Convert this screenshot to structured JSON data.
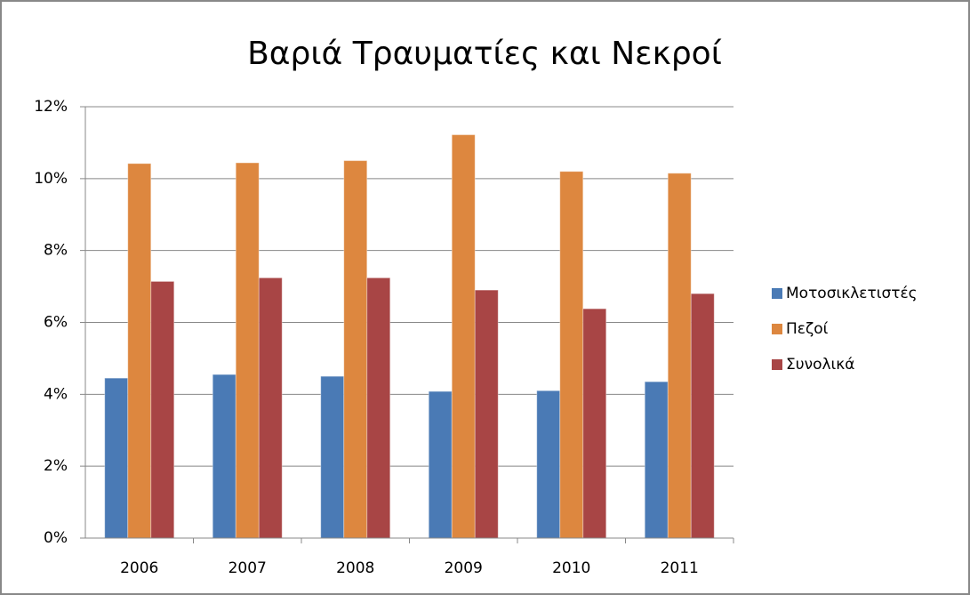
{
  "chart_data": {
    "type": "bar",
    "title": "Βαριά Τραυματίες και Νεκροί",
    "categories": [
      "2006",
      "2007",
      "2008",
      "2009",
      "2010",
      "2011"
    ],
    "series": [
      {
        "name": "Μοτοσικλετιστές",
        "color": "#4a7ab5",
        "values": [
          4.45,
          4.55,
          4.5,
          4.08,
          4.1,
          4.35
        ]
      },
      {
        "name": "Πεζοί",
        "color": "#dd873f",
        "values": [
          10.42,
          10.44,
          10.5,
          11.22,
          10.2,
          10.15
        ]
      },
      {
        "name": "Συνολικά",
        "color": "#a84545",
        "values": [
          7.14,
          7.24,
          7.24,
          6.9,
          6.38,
          6.8
        ]
      }
    ],
    "ylim": [
      0,
      12
    ],
    "yticks": [
      {
        "value": 0,
        "label": "0%"
      },
      {
        "value": 2,
        "label": "2%"
      },
      {
        "value": 4,
        "label": "4%"
      },
      {
        "value": 6,
        "label": "6%"
      },
      {
        "value": 8,
        "label": "8%"
      },
      {
        "value": 10,
        "label": "10%"
      },
      {
        "value": 12,
        "label": "12%"
      }
    ],
    "grid": true,
    "legend": "right"
  }
}
